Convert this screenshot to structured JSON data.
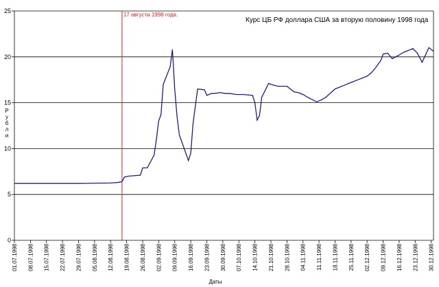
{
  "chart_data": {
    "type": "line",
    "title": "Курс ЦБ РФ доллара США за вторую половину 1998 года",
    "xlabel": "Даты",
    "ylabel": "Рубли",
    "ylim": [
      0,
      25
    ],
    "yticks": [
      0,
      5,
      10,
      15,
      20,
      25
    ],
    "grid": "horizontal",
    "x_ticks": [
      "01.07.1998",
      "08.07.1998",
      "15.07.1998",
      "22.07.1998",
      "29.07.1998",
      "05.08.1998",
      "12.08.1998",
      "19.08.1998",
      "26.08.1998",
      "02.09.1998",
      "09.09.1998",
      "16.09.1998",
      "23.09.1998",
      "30.09.1998",
      "07.10.1998",
      "14.10.1998",
      "21.10.1998",
      "28.10.1998",
      "04.11.1998",
      "11.11.1998",
      "18.11.1998",
      "25.11.1998",
      "02.12.1998",
      "09.12.1998",
      "16.12.1998",
      "23.12.1998",
      "30.12.1998"
    ],
    "x_range": [
      "1998-07-01",
      "1998-12-31"
    ],
    "annotation": {
      "text": "17 августа 1998 года.",
      "date": "1998-08-17",
      "color": "#e0201c"
    },
    "line_color": "#1c1c80",
    "series": [
      {
        "x": [
          "1998-07-01",
          "1998-07-15",
          "1998-07-29",
          "1998-08-12",
          "1998-08-15",
          "1998-08-17",
          "1998-08-18",
          "1998-08-20",
          "1998-08-25",
          "1998-08-26",
          "1998-08-28",
          "1998-08-31",
          "1998-09-01",
          "1998-09-02",
          "1998-09-03",
          "1998-09-04",
          "1998-09-07",
          "1998-09-08",
          "1998-09-09",
          "1998-09-10",
          "1998-09-11",
          "1998-09-15",
          "1998-09-16",
          "1998-09-17",
          "1998-09-19",
          "1998-09-22",
          "1998-09-23",
          "1998-09-25",
          "1998-09-26",
          "1998-09-29",
          "1998-10-01",
          "1998-10-03",
          "1998-10-06",
          "1998-10-09",
          "1998-10-13",
          "1998-10-14",
          "1998-10-15",
          "1998-10-16",
          "1998-10-17",
          "1998-10-20",
          "1998-10-21",
          "1998-10-24",
          "1998-10-28",
          "1998-10-31",
          "1998-11-02",
          "1998-11-04",
          "1998-11-06",
          "1998-11-10",
          "1998-11-12",
          "1998-11-14",
          "1998-11-18",
          "1998-11-20",
          "1998-11-22",
          "1998-11-24",
          "1998-11-26",
          "1998-11-28",
          "1998-12-02",
          "1998-12-04",
          "1998-12-06",
          "1998-12-08",
          "1998-12-09",
          "1998-12-11",
          "1998-12-13",
          "1998-12-16",
          "1998-12-18",
          "1998-12-21",
          "1998-12-22",
          "1998-12-24",
          "1998-12-26",
          "1998-12-29",
          "1998-12-31"
        ],
        "y": [
          6.2,
          6.2,
          6.2,
          6.25,
          6.3,
          6.4,
          6.9,
          7.0,
          7.1,
          7.9,
          7.9,
          9.3,
          11.0,
          13.0,
          13.7,
          17.0,
          18.9,
          20.8,
          16.5,
          13.5,
          11.5,
          8.7,
          9.5,
          12.7,
          16.5,
          16.4,
          15.8,
          16.0,
          16.0,
          16.1,
          16.0,
          16.0,
          15.9,
          15.9,
          15.8,
          15.0,
          13.1,
          13.6,
          15.6,
          17.1,
          17.0,
          16.8,
          16.8,
          16.2,
          16.1,
          15.9,
          15.6,
          15.1,
          15.3,
          15.6,
          16.5,
          16.7,
          16.9,
          17.1,
          17.3,
          17.5,
          17.9,
          18.3,
          18.9,
          19.6,
          20.3,
          20.4,
          19.8,
          20.2,
          20.5,
          20.8,
          20.9,
          20.4,
          19.4,
          21.0,
          20.6
        ]
      }
    ]
  }
}
